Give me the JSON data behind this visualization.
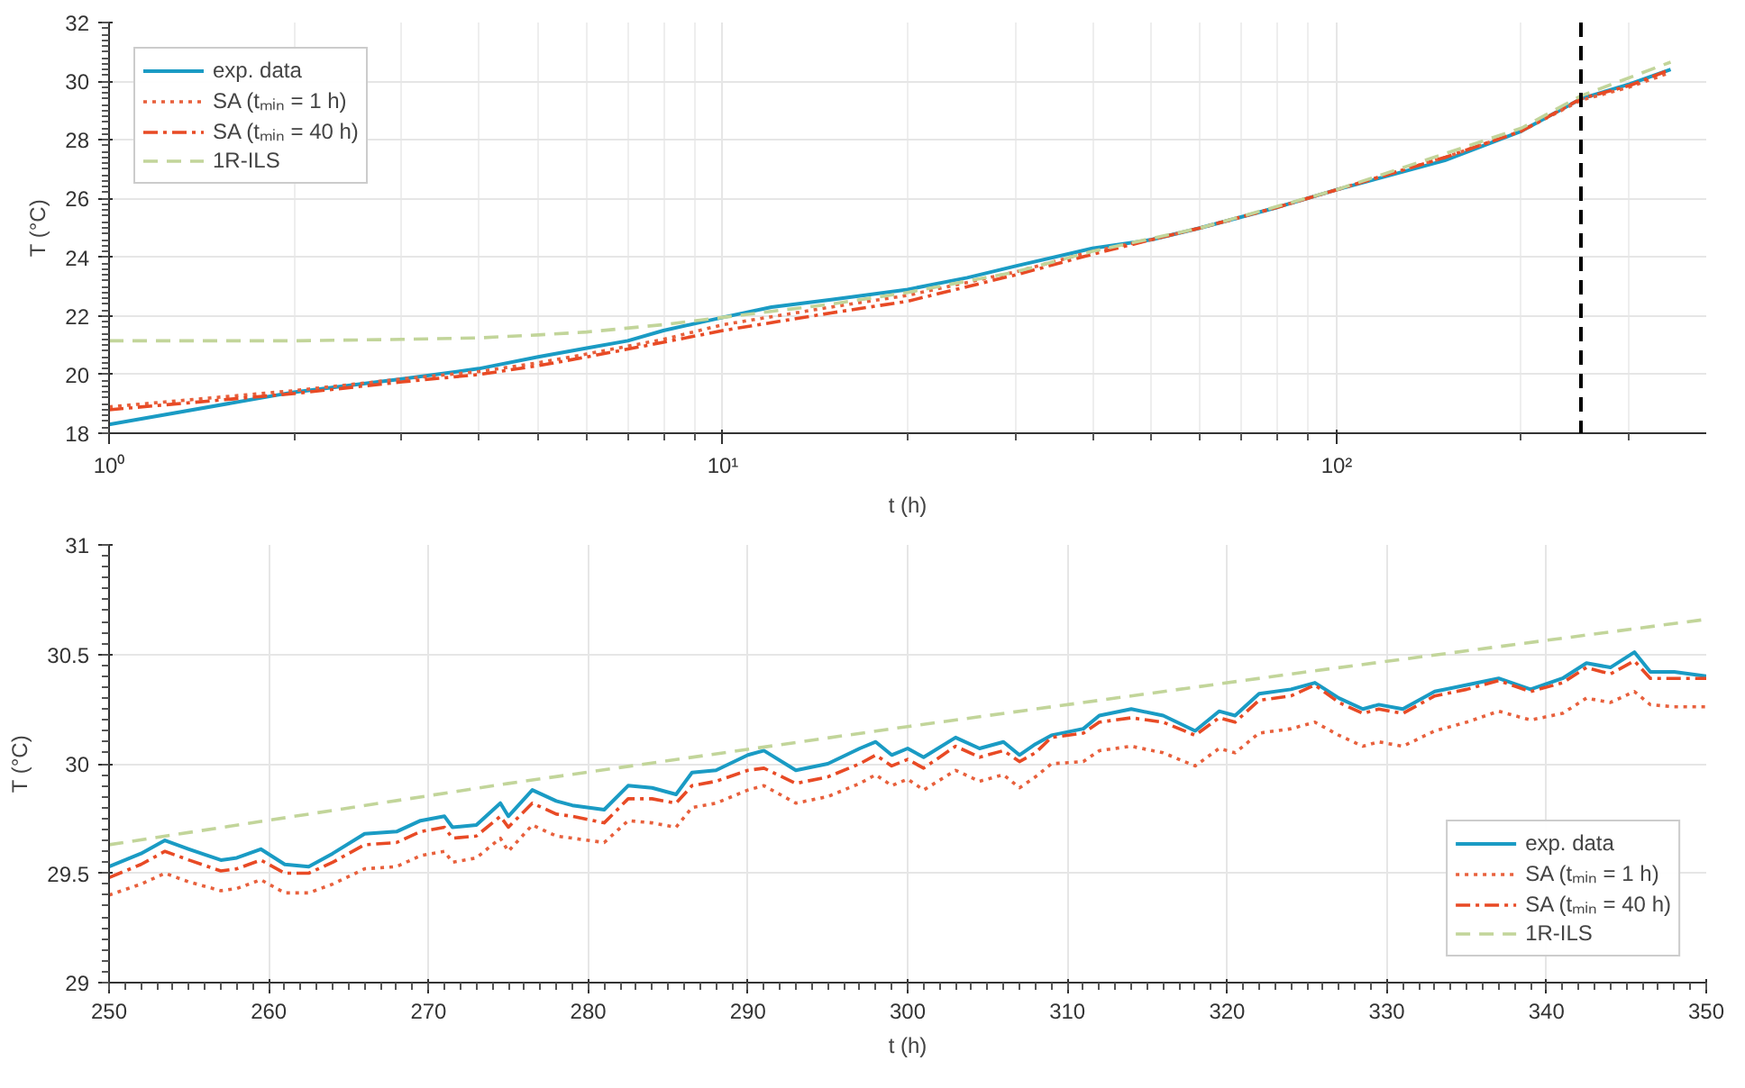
{
  "chart_data": [
    {
      "type": "line",
      "xlabel": "t (h)",
      "ylabel": "T (°C)",
      "log": "x",
      "grid": true,
      "legend": "top left",
      "xlim": [
        1,
        400
      ],
      "xticks": [
        {
          "value": 1,
          "label": "10⁰"
        },
        {
          "value": 10,
          "label": "10¹"
        },
        {
          "value": 100,
          "label": "10²"
        }
      ],
      "ylim": [
        18,
        32
      ],
      "yticks": [
        18,
        20,
        22,
        24,
        26,
        28,
        30,
        32
      ],
      "ref_lines": [
        {
          "axis": "x",
          "value": 250,
          "color": "#000000",
          "line_style": "dashed"
        }
      ],
      "series": [
        {
          "name": "exp. data",
          "color": "#1a9bc4",
          "line_style": "solid",
          "x": [
            1,
            2,
            3,
            4,
            5,
            6,
            7,
            8,
            10,
            12,
            15,
            20,
            25,
            30,
            40,
            50,
            60,
            80,
            100,
            150,
            200,
            250,
            300,
            350
          ],
          "values": [
            18.3,
            19.4,
            19.85,
            20.2,
            20.6,
            20.9,
            21.15,
            21.5,
            21.95,
            22.3,
            22.55,
            22.9,
            23.3,
            23.7,
            24.3,
            24.6,
            25.0,
            25.7,
            26.3,
            27.3,
            28.3,
            29.4,
            29.9,
            30.4
          ]
        },
        {
          "name": "SA (tₘᵢₙ = 1 h)",
          "color": "#e8603c",
          "line_style": "dotted",
          "x": [
            1,
            2,
            3,
            4,
            5,
            6,
            8,
            10,
            15,
            20,
            30,
            40,
            50,
            60,
            80,
            100,
            150,
            200,
            250,
            300,
            350
          ],
          "values": [
            18.9,
            19.45,
            19.85,
            20.1,
            20.4,
            20.7,
            21.2,
            21.7,
            22.3,
            22.7,
            23.5,
            24.2,
            24.6,
            25.0,
            25.7,
            26.3,
            27.4,
            28.3,
            29.35,
            29.8,
            30.3
          ]
        },
        {
          "name": "SA (tₘᵢₙ = 40 h)",
          "color": "#e84a25",
          "line_style": "dashdot",
          "x": [
            1,
            2,
            3,
            4,
            5,
            6,
            8,
            10,
            15,
            20,
            30,
            40,
            50,
            60,
            80,
            100,
            150,
            200,
            250,
            300,
            350
          ],
          "values": [
            18.8,
            19.35,
            19.75,
            20.0,
            20.3,
            20.6,
            21.1,
            21.5,
            22.1,
            22.5,
            23.4,
            24.1,
            24.6,
            25.0,
            25.7,
            26.3,
            27.4,
            28.3,
            29.4,
            29.85,
            30.4
          ]
        },
        {
          "name": "1R-ILS",
          "color": "#c2d59a",
          "line_style": "dashed",
          "x": [
            1,
            2,
            3,
            4,
            5,
            6,
            8,
            10,
            15,
            20,
            30,
            40,
            60,
            100,
            200,
            250,
            350
          ],
          "values": [
            21.15,
            21.15,
            21.2,
            21.25,
            21.35,
            21.45,
            21.7,
            21.95,
            22.4,
            22.8,
            23.5,
            24.2,
            25.0,
            26.3,
            28.4,
            29.5,
            30.65
          ]
        }
      ]
    },
    {
      "type": "line",
      "xlabel": "t (h)",
      "ylabel": "T (°C)",
      "grid": true,
      "legend": "bottom right",
      "xlim": [
        250,
        350
      ],
      "xticks": [
        250,
        260,
        270,
        280,
        290,
        300,
        310,
        320,
        330,
        340,
        350
      ],
      "ylim": [
        29,
        31
      ],
      "yticks": [
        29,
        29.5,
        30,
        30.5,
        31
      ],
      "series": [
        {
          "name": "exp. data",
          "color": "#1a9bc4",
          "line_style": "solid",
          "x": [
            250,
            252,
            253.5,
            255,
            257,
            258,
            259.5,
            261,
            262.5,
            264,
            266,
            268,
            269.5,
            271,
            271.5,
            273,
            274.5,
            275,
            276.5,
            278,
            279,
            281,
            282.5,
            284,
            285.5,
            286.5,
            288,
            290,
            291,
            293,
            295,
            297,
            298,
            299,
            300,
            301,
            303,
            304.5,
            306,
            307,
            308,
            309,
            311,
            312,
            314,
            316,
            318,
            319.5,
            320.5,
            322,
            324,
            325.5,
            327,
            328.5,
            329.5,
            331,
            333,
            335,
            337,
            339,
            341,
            342.5,
            344,
            345.5,
            346.5,
            348,
            350
          ],
          "values": [
            29.53,
            29.59,
            29.65,
            29.61,
            29.56,
            29.57,
            29.61,
            29.54,
            29.53,
            29.59,
            29.68,
            29.69,
            29.74,
            29.76,
            29.71,
            29.72,
            29.82,
            29.76,
            29.88,
            29.83,
            29.81,
            29.79,
            29.9,
            29.89,
            29.86,
            29.96,
            29.97,
            30.04,
            30.06,
            29.97,
            30.0,
            30.07,
            30.1,
            30.04,
            30.07,
            30.03,
            30.12,
            30.07,
            30.1,
            30.04,
            30.09,
            30.13,
            30.16,
            30.22,
            30.25,
            30.22,
            30.15,
            30.24,
            30.22,
            30.32,
            30.34,
            30.37,
            30.3,
            30.25,
            30.27,
            30.25,
            30.33,
            30.36,
            30.39,
            30.34,
            30.39,
            30.46,
            30.44,
            30.51,
            30.42,
            30.42,
            30.4
          ]
        },
        {
          "name": "SA (tₘᵢₙ = 1 h)",
          "color": "#e8603c",
          "line_style": "dotted",
          "x": [
            250,
            252,
            253.5,
            255,
            257,
            258,
            259.5,
            261,
            262.5,
            264,
            266,
            268,
            269.5,
            271,
            271.5,
            273,
            274.5,
            275,
            276.5,
            278,
            279,
            281,
            282.5,
            284,
            285.5,
            286.5,
            288,
            290,
            291,
            293,
            295,
            297,
            298,
            299,
            300,
            301,
            303,
            304.5,
            306,
            307,
            308,
            309,
            311,
            312,
            314,
            316,
            318,
            319.5,
            320.5,
            322,
            324,
            325.5,
            327,
            328.5,
            329.5,
            331,
            333,
            335,
            337,
            339,
            341,
            342.5,
            344,
            345.5,
            346.5,
            348,
            350
          ],
          "values": [
            29.4,
            29.45,
            29.5,
            29.46,
            29.42,
            29.43,
            29.47,
            29.41,
            29.41,
            29.45,
            29.52,
            29.53,
            29.58,
            29.6,
            29.55,
            29.57,
            29.66,
            29.6,
            29.72,
            29.67,
            29.66,
            29.64,
            29.74,
            29.73,
            29.71,
            29.8,
            29.82,
            29.88,
            29.9,
            29.82,
            29.85,
            29.91,
            29.95,
            29.9,
            29.93,
            29.88,
            29.97,
            29.92,
            29.95,
            29.89,
            29.94,
            30.0,
            30.01,
            30.06,
            30.08,
            30.05,
            29.99,
            30.07,
            30.05,
            30.14,
            30.16,
            30.19,
            30.13,
            30.08,
            30.1,
            30.08,
            30.15,
            30.19,
            30.24,
            30.2,
            30.23,
            30.3,
            30.28,
            30.33,
            30.27,
            30.26,
            30.26
          ]
        },
        {
          "name": "SA (tₘᵢₙ = 40 h)",
          "color": "#e84a25",
          "line_style": "dashdot",
          "x": [
            250,
            252,
            253.5,
            255,
            257,
            258,
            259.5,
            261,
            262.5,
            264,
            266,
            268,
            269.5,
            271,
            271.5,
            273,
            274.5,
            275,
            276.5,
            278,
            279,
            281,
            282.5,
            284,
            285.5,
            286.5,
            288,
            290,
            291,
            293,
            295,
            297,
            298,
            299,
            300,
            301,
            303,
            304.5,
            306,
            307,
            308,
            309,
            311,
            312,
            314,
            316,
            318,
            319.5,
            320.5,
            322,
            324,
            325.5,
            327,
            328.5,
            329.5,
            331,
            333,
            335,
            337,
            339,
            341,
            342.5,
            344,
            345.5,
            346.5,
            348,
            350
          ],
          "values": [
            29.48,
            29.54,
            29.6,
            29.56,
            29.51,
            29.52,
            29.56,
            29.5,
            29.5,
            29.55,
            29.63,
            29.64,
            29.69,
            29.71,
            29.66,
            29.67,
            29.76,
            29.71,
            29.82,
            29.77,
            29.76,
            29.73,
            29.84,
            29.84,
            29.82,
            29.9,
            29.92,
            29.97,
            29.98,
            29.91,
            29.94,
            30.0,
            30.04,
            29.99,
            30.02,
            29.98,
            30.08,
            30.03,
            30.06,
            30.01,
            30.05,
            30.12,
            30.14,
            30.19,
            30.21,
            30.19,
            30.13,
            30.21,
            30.19,
            30.29,
            30.31,
            30.36,
            30.28,
            30.23,
            30.25,
            30.23,
            30.31,
            30.34,
            30.38,
            30.33,
            30.37,
            30.44,
            30.41,
            30.47,
            30.39,
            30.39,
            30.39
          ]
        },
        {
          "name": "1R-ILS",
          "color": "#c2d59a",
          "line_style": "dashed",
          "x": [
            250,
            275,
            300,
            325,
            350
          ],
          "values": [
            29.63,
            29.91,
            30.17,
            30.42,
            30.66
          ]
        }
      ]
    }
  ]
}
